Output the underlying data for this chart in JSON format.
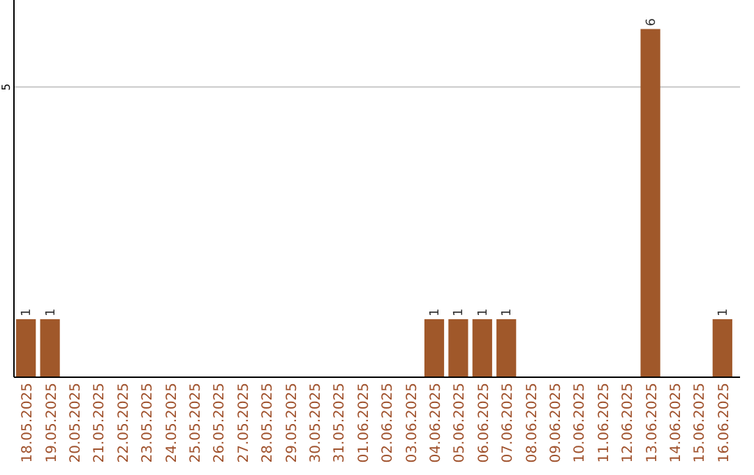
{
  "chart_data": {
    "type": "bar",
    "categories": [
      "18.05.2025",
      "19.05.2025",
      "20.05.2025",
      "21.05.2025",
      "22.05.2025",
      "23.05.2025",
      "24.05.2025",
      "25.05.2025",
      "26.05.2025",
      "27.05.2025",
      "28.05.2025",
      "29.05.2025",
      "30.05.2025",
      "31.05.2025",
      "01.06.2025",
      "02.06.2025",
      "03.06.2025",
      "04.06.2025",
      "05.06.2025",
      "06.06.2025",
      "07.06.2025",
      "08.06.2025",
      "09.06.2025",
      "10.06.2025",
      "11.06.2025",
      "12.06.2025",
      "13.06.2025",
      "14.06.2025",
      "15.06.2025",
      "16.06.2025"
    ],
    "values": [
      1,
      1,
      0,
      0,
      0,
      0,
      0,
      0,
      0,
      0,
      0,
      0,
      0,
      0,
      0,
      0,
      0,
      1,
      1,
      1,
      1,
      0,
      0,
      0,
      0,
      0,
      6,
      0,
      0,
      1
    ],
    "value_labels": [
      "1",
      "1",
      null,
      null,
      null,
      null,
      null,
      null,
      null,
      null,
      null,
      null,
      null,
      null,
      null,
      null,
      null,
      "1",
      "1",
      "1",
      "1",
      null,
      null,
      null,
      null,
      null,
      "6",
      null,
      null,
      "1"
    ],
    "color": "#a0582a",
    "ylim": [
      0,
      6.5
    ],
    "yticks": [
      5
    ],
    "grid": "y"
  }
}
